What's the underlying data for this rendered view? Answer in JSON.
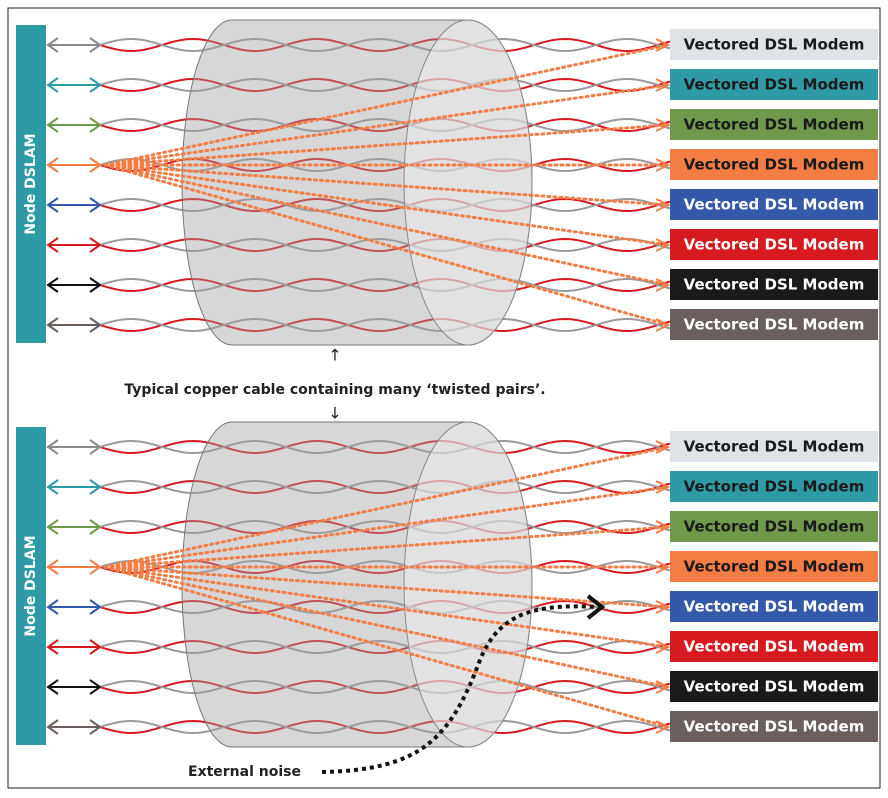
{
  "panels": [
    {
      "dslam_label": "Node DSLAM",
      "modems": [
        "Vectored DSL Modem",
        "Vectored DSL Modem",
        "Vectored DSL Modem",
        "Vectored DSL Modem",
        "Vectored DSL Modem",
        "Vectored DSL Modem",
        "Vectored DSL Modem",
        "Vectored DSL Modem"
      ]
    },
    {
      "dslam_label": "Node DSLAM",
      "modems": [
        "Vectored DSL Modem",
        "Vectored DSL Modem",
        "Vectored DSL Modem",
        "Vectored DSL Modem",
        "Vectored DSL Modem",
        "Vectored DSL Modem",
        "Vectored DSL Modem",
        "Vectored DSL Modem"
      ]
    }
  ],
  "caption": "Typical copper cable containing many ‘twisted pairs’.",
  "noise_label": "External noise"
}
